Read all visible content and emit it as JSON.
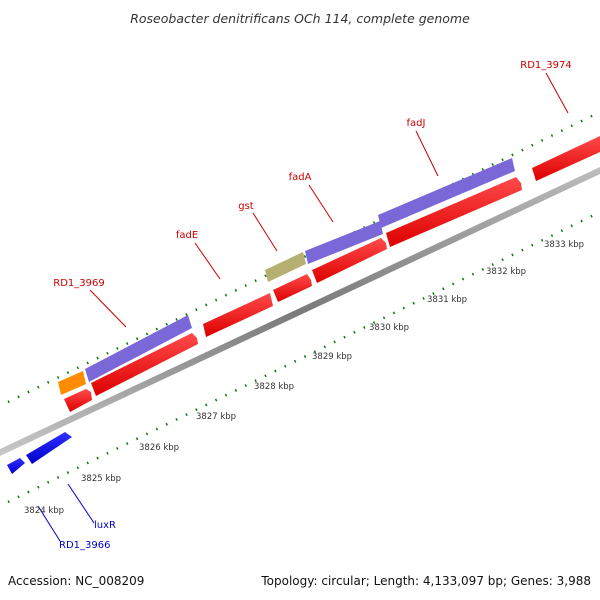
{
  "title": "Roseobacter denitrificans OCh 114, complete genome",
  "accession": "Accession: NC_008209",
  "topology": "Topology: circular; Length: 4,133,097 bp; Genes: 3,988",
  "colors": {
    "background": "#ffffff",
    "cds_forward": "#ff0000",
    "cds_reverse": "#0000e6",
    "rna_purple": "#7b68d8",
    "rna_orange": "#ff8c00",
    "olive": "#b5b070",
    "backbone": "#888888",
    "ticks": "#0a7a0a",
    "label_red": "#cc0000",
    "label_blue": "#0000cc"
  },
  "scale": {
    "tick_labels": [
      "3824 kbp",
      "3825 kbp",
      "3826 kbp",
      "3827 kbp",
      "3828 kbp",
      "3829 kbp",
      "3830 kbp",
      "3831 kbp",
      "3832 kbp",
      "3833 kbp"
    ]
  },
  "gene_labels": {
    "red": [
      "RD1_3969",
      "fadE",
      "gst",
      "fadA",
      "fadJ",
      "RD1_3974"
    ],
    "blue": [
      "luxR",
      "RD1_3966"
    ]
  }
}
